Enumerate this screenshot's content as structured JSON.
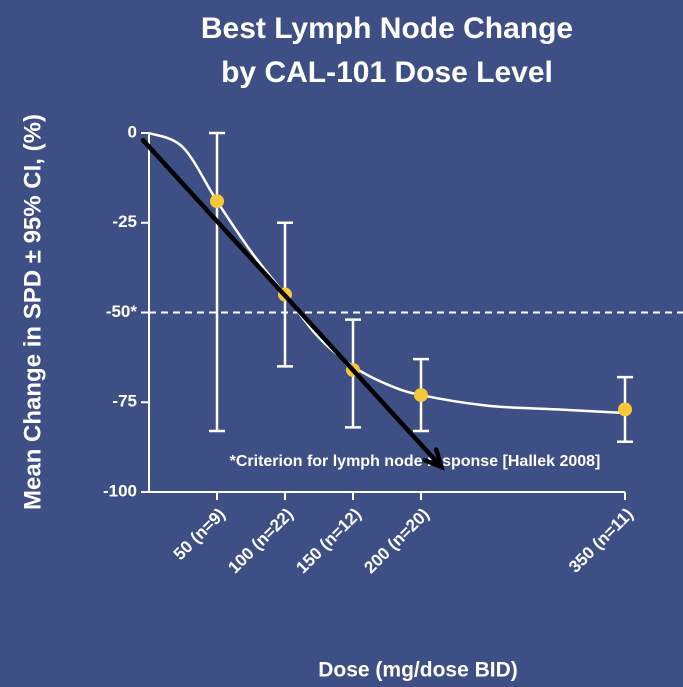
{
  "chart_data": {
    "type": "errorbar",
    "title": [
      "Best Lymph Node Change",
      "by CAL-101 Dose Level"
    ],
    "y_label": "Mean Change in SPD ± 95% CI, (%)",
    "x_label": "Dose (mg/dose BID)",
    "xlim": [
      0,
      350
    ],
    "ylim": [
      -100,
      0
    ],
    "xticks": [
      {
        "value": 50,
        "label": "50 (n=9)"
      },
      {
        "value": 100,
        "label": "100 (n=22)"
      },
      {
        "value": 150,
        "label": "150 (n=12)"
      },
      {
        "value": 200,
        "label": "200 (n=20)"
      },
      {
        "value": 350,
        "label": "350 (n=11)"
      }
    ],
    "yticks": [
      0,
      -25,
      {
        "value": -50,
        "label": "-50*"
      },
      -75,
      -100
    ],
    "series": [
      {
        "color": "#f7c73a",
        "x": [
          50,
          100,
          150,
          200,
          350
        ],
        "values": [
          -19,
          -45,
          -66,
          -73,
          -77
        ],
        "ci_low": [
          -83,
          -65,
          -82,
          -83,
          -86
        ],
        "ci_high": [
          0,
          -25,
          -52,
          -63,
          -68
        ]
      }
    ],
    "fit_curve": {
      "color": "#ffffff",
      "x": [
        0,
        25,
        50,
        75,
        100,
        125,
        150,
        175,
        200,
        250,
        300,
        350
      ],
      "y": [
        0,
        -4,
        -19,
        -33,
        -45,
        -57,
        -65,
        -70,
        -73,
        -76,
        -77,
        -78
      ]
    },
    "trend_arrow": {
      "color": "#000000",
      "x": [
        0,
        215
      ],
      "y": [
        -2,
        -93
      ]
    },
    "threshold": -50,
    "annotation": "*Criterion for lymph node response [Hallek 2008]"
  }
}
